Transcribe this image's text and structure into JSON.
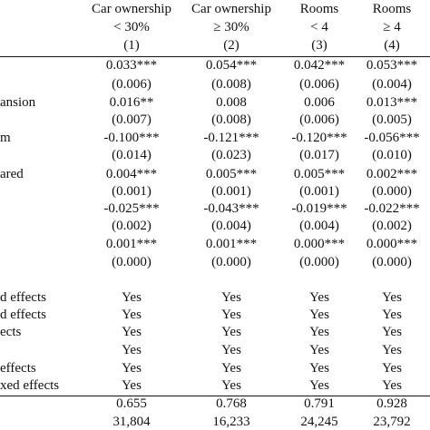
{
  "header": {
    "columns": [
      {
        "lines": [
          "Car ownership",
          "< 30%",
          "(1)"
        ]
      },
      {
        "lines": [
          "Car ownership",
          "≥ 30%",
          "(2)"
        ]
      },
      {
        "lines": [
          "Rooms",
          "< 4",
          "(3)"
        ]
      },
      {
        "lines": [
          "Rooms",
          "≥ 4",
          "(4)"
        ]
      }
    ]
  },
  "table": {
    "rows": [
      {
        "cells": [
          "0.033***",
          "0.054***",
          "0.042***",
          "0.053***"
        ]
      },
      {
        "cells": [
          "(0.006)",
          "(0.008)",
          "(0.006)",
          "(0.004)"
        ]
      },
      {
        "label": "ansion",
        "cells": [
          "0.016**",
          "0.008",
          "0.006",
          "0.013***"
        ]
      },
      {
        "cells": [
          "(0.007)",
          "(0.008)",
          "(0.006)",
          "(0.005)"
        ]
      },
      {
        "label": "m",
        "cells": [
          "-0.100***",
          "-0.121***",
          "-0.120***",
          "-0.056***"
        ]
      },
      {
        "cells": [
          "(0.014)",
          "(0.023)",
          "(0.017)",
          "(0.010)"
        ]
      },
      {
        "label": "ared",
        "cells": [
          "0.004***",
          "0.005***",
          "0.005***",
          "0.002***"
        ]
      },
      {
        "cells": [
          "(0.001)",
          "(0.001)",
          "(0.001)",
          "(0.000)"
        ]
      },
      {
        "cells": [
          "-0.025***",
          "-0.043***",
          "-0.019***",
          "-0.022***"
        ]
      },
      {
        "cells": [
          "(0.002)",
          "(0.004)",
          "(0.004)",
          "(0.002)"
        ]
      },
      {
        "cells": [
          "0.001***",
          "0.001***",
          "0.000***",
          "0.000***"
        ]
      },
      {
        "cells": [
          "(0.000)",
          "(0.000)",
          "(0.000)",
          "(0.000)"
        ]
      },
      {
        "label": "d effects",
        "cells": [
          "Yes",
          "Yes",
          "Yes",
          "Yes"
        ]
      },
      {
        "label": "d effects",
        "cells": [
          "Yes",
          "Yes",
          "Yes",
          "Yes"
        ]
      },
      {
        "label": "ects",
        "cells": [
          "Yes",
          "Yes",
          "Yes",
          "Yes"
        ]
      },
      {
        "cells": [
          "Yes",
          "Yes",
          "Yes",
          "Yes"
        ]
      },
      {
        "label": "effects",
        "cells": [
          "Yes",
          "Yes",
          "Yes",
          "Yes"
        ]
      },
      {
        "label": "xed effects",
        "cells": [
          "Yes",
          "Yes",
          "Yes",
          "Yes"
        ]
      },
      {
        "cells": [
          "0.655",
          "0.768",
          "0.791",
          "0.928"
        ]
      },
      {
        "cells": [
          "31,804",
          "16,233",
          "24,245",
          "23,792"
        ]
      }
    ]
  }
}
